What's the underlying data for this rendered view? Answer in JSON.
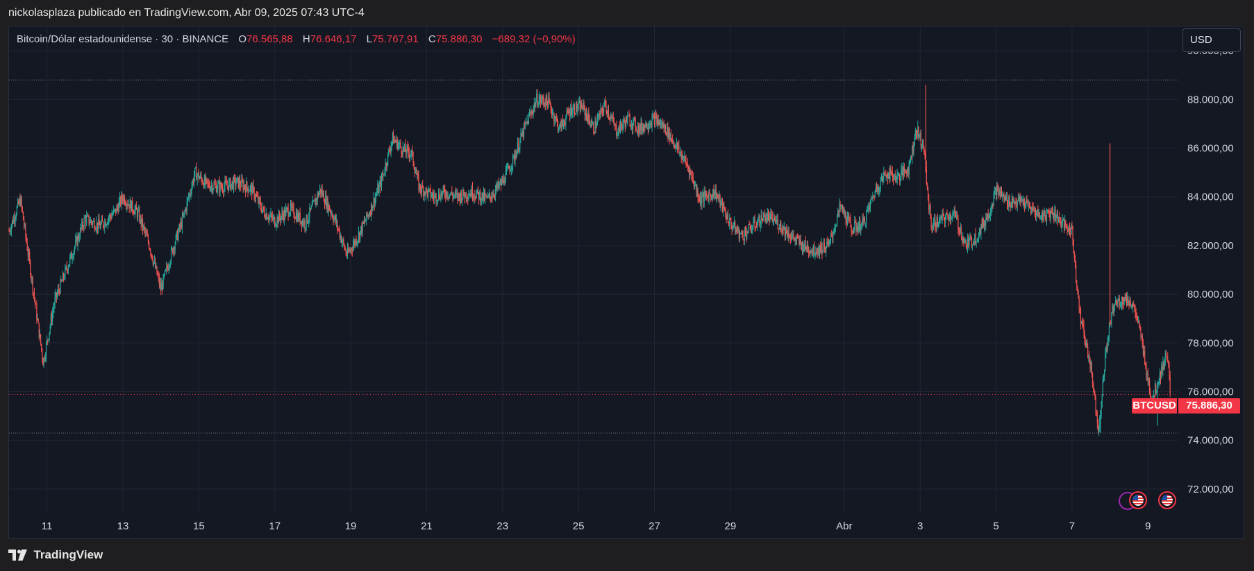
{
  "header": {
    "published_line": "nickolasplaza publicado en TradingView.com, Abr 09, 2025 07:43 UTC-4"
  },
  "legend": {
    "symbol_desc": "Bitcoin/Dólar estadounidense · 30 · BINANCE",
    "open_label": "O",
    "open_value": "76.565,88",
    "high_label": "H",
    "high_value": "76.646,17",
    "low_label": "L",
    "low_value": "75.767,91",
    "close_label": "C",
    "close_value": "75.886,30",
    "change": "−689,32 (−0,90%)"
  },
  "currency_button": "USD",
  "last_price_tag": {
    "symbol": "BTCUSD",
    "value": "75.886,30"
  },
  "footer": {
    "brand": "TradingView"
  },
  "colors": {
    "up": "#26a69a",
    "down": "#ef5350",
    "background": "#141823",
    "grid": "#222634",
    "price_line": "#f23645",
    "level_line": "#787b86",
    "axis_text": "#d1d4dc"
  },
  "chart_data": {
    "type": "candlestick",
    "symbol": "BTCUSD",
    "interval": "30",
    "ylim": [
      71000,
      91000
    ],
    "y_ticks": [
      72000,
      74000,
      76000,
      78000,
      80000,
      82000,
      84000,
      86000,
      88000,
      90000
    ],
    "y_tick_labels": [
      "72.000,00",
      "74.000,00",
      "76.000,00",
      "78.000,00",
      "80.000,00",
      "82.000,00",
      "84.000,00",
      "86.000,00",
      "88.000,00",
      "90.000,00"
    ],
    "x_tick_labels": [
      "11",
      "13",
      "15",
      "17",
      "19",
      "21",
      "23",
      "25",
      "27",
      "29",
      "Abr",
      "3",
      "5",
      "7",
      "9"
    ],
    "x_range_days": [
      10.0,
      40.8
    ],
    "x_tick_days": [
      11,
      13,
      15,
      17,
      19,
      21,
      23,
      25,
      27,
      29,
      32,
      34,
      36,
      38,
      40
    ],
    "horizontal_levels": [
      88800,
      74300
    ],
    "last_price": 75886.3,
    "close_path": [
      [
        10.0,
        82600
      ],
      [
        10.3,
        83900
      ],
      [
        10.6,
        80600
      ],
      [
        10.9,
        77200
      ],
      [
        11.2,
        79700
      ],
      [
        11.6,
        81400
      ],
      [
        12.0,
        83100
      ],
      [
        12.4,
        82800
      ],
      [
        12.8,
        83400
      ],
      [
        13.0,
        84000
      ],
      [
        13.4,
        83300
      ],
      [
        13.7,
        82000
      ],
      [
        14.0,
        80200
      ],
      [
        14.3,
        81800
      ],
      [
        14.6,
        83200
      ],
      [
        14.9,
        85000
      ],
      [
        15.2,
        84500
      ],
      [
        15.6,
        84400
      ],
      [
        16.0,
        84600
      ],
      [
        16.4,
        84300
      ],
      [
        16.7,
        83400
      ],
      [
        17.0,
        83000
      ],
      [
        17.4,
        83500
      ],
      [
        17.8,
        82900
      ],
      [
        18.2,
        84300
      ],
      [
        18.6,
        83000
      ],
      [
        18.9,
        81600
      ],
      [
        19.2,
        82400
      ],
      [
        19.5,
        83400
      ],
      [
        19.8,
        84600
      ],
      [
        20.1,
        86400
      ],
      [
        20.4,
        85900
      ],
      [
        20.6,
        85800
      ],
      [
        20.8,
        84400
      ],
      [
        21.2,
        84000
      ],
      [
        21.5,
        84200
      ],
      [
        21.8,
        84000
      ],
      [
        22.2,
        84200
      ],
      [
        22.6,
        83900
      ],
      [
        23.0,
        84600
      ],
      [
        23.3,
        85600
      ],
      [
        23.6,
        86900
      ],
      [
        23.9,
        88000
      ],
      [
        24.2,
        87900
      ],
      [
        24.5,
        86800
      ],
      [
        24.8,
        87600
      ],
      [
        25.1,
        87700
      ],
      [
        25.4,
        86800
      ],
      [
        25.7,
        87800
      ],
      [
        26.0,
        86700
      ],
      [
        26.3,
        87200
      ],
      [
        26.6,
        86800
      ],
      [
        27.0,
        87200
      ],
      [
        27.3,
        86800
      ],
      [
        27.6,
        86000
      ],
      [
        27.9,
        85200
      ],
      [
        28.2,
        83900
      ],
      [
        28.6,
        84200
      ],
      [
        29.0,
        82900
      ],
      [
        29.3,
        82400
      ],
      [
        29.6,
        82800
      ],
      [
        29.9,
        83200
      ],
      [
        30.2,
        83000
      ],
      [
        30.6,
        82400
      ],
      [
        30.9,
        82000
      ],
      [
        31.2,
        81800
      ],
      [
        31.6,
        82000
      ],
      [
        31.9,
        83600
      ],
      [
        32.2,
        82700
      ],
      [
        32.5,
        82900
      ],
      [
        32.8,
        84200
      ],
      [
        33.1,
        85000
      ],
      [
        33.4,
        84800
      ],
      [
        33.7,
        85200
      ],
      [
        33.9,
        86800
      ],
      [
        34.1,
        86000
      ],
      [
        34.2,
        84000
      ],
      [
        34.3,
        82800
      ],
      [
        34.6,
        83100
      ],
      [
        34.9,
        83300
      ],
      [
        35.2,
        82000
      ],
      [
        35.5,
        82400
      ],
      [
        35.8,
        83300
      ],
      [
        36.0,
        84300
      ],
      [
        36.3,
        83800
      ],
      [
        36.7,
        83800
      ],
      [
        37.0,
        83400
      ],
      [
        37.2,
        83200
      ],
      [
        37.5,
        83400
      ],
      [
        37.8,
        82800
      ],
      [
        38.0,
        82600
      ],
      [
        38.2,
        79200
      ],
      [
        38.5,
        77000
      ],
      [
        38.7,
        74400
      ],
      [
        38.9,
        77800
      ],
      [
        39.1,
        79600
      ],
      [
        39.4,
        79800
      ],
      [
        39.6,
        79600
      ],
      [
        39.8,
        78400
      ],
      [
        40.1,
        75600
      ],
      [
        40.3,
        76600
      ],
      [
        40.5,
        77600
      ],
      [
        40.6,
        75886.3
      ]
    ],
    "spikes": [
      {
        "day": 34.15,
        "high": 88600
      },
      {
        "day": 39.0,
        "high": 86200
      },
      {
        "day": 38.75,
        "low": 74300
      },
      {
        "day": 40.25,
        "low": 74600
      }
    ]
  }
}
